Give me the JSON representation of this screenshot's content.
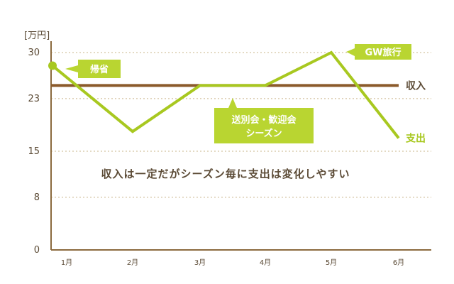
{
  "chart_data": {
    "type": "line",
    "unit_label": "[万円]",
    "categories": [
      "1月",
      "2月",
      "3月",
      "4月",
      "5月",
      "6月"
    ],
    "ylim": [
      0,
      30
    ],
    "yticks": [
      "30",
      "23",
      "15",
      "8",
      "0"
    ],
    "ytick_values": [
      30,
      23,
      15,
      8,
      0
    ],
    "grid": true,
    "series": [
      {
        "name": "収入",
        "values": [
          25,
          25,
          25,
          25,
          25,
          25
        ],
        "color": "#8b5a2b"
      },
      {
        "name": "支出",
        "values": [
          28,
          18,
          25,
          25,
          30,
          17
        ],
        "color": "#a8c820"
      }
    ],
    "annotations": {
      "return_home": "帰省",
      "gw_trip": "GW旅行",
      "events_line1": "送別会・歓迎会",
      "events_line2": "シーズン"
    },
    "message": "収入は一定だがシーズン毎に支出は変化しやすい"
  },
  "colors": {
    "axis": "#8b6a3e",
    "text": "#5b4a35",
    "grid": "#c9b48a",
    "callout_fill": "#b9d531"
  }
}
